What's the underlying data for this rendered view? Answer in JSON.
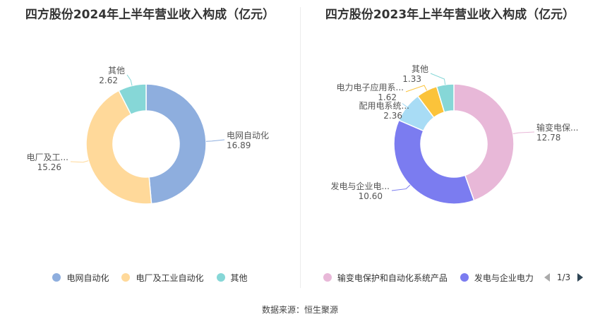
{
  "chart_data": [
    {
      "type": "pie",
      "title": "四方股份2024年上半年营业收入构成（亿元）",
      "categories": [
        "电网自动化",
        "电厂及工业自动化",
        "其他"
      ],
      "values": [
        16.89,
        15.26,
        2.62
      ],
      "label_names": [
        "电网自动化",
        "电厂及工...",
        "其他"
      ],
      "value_labels": [
        "16.89",
        "15.26",
        "2.62"
      ],
      "colors": [
        "#8eaede",
        "#ffd99a",
        "#86d7d7"
      ],
      "legend": [
        "电网自动化",
        "电厂及工业自动化",
        "其他"
      ]
    },
    {
      "type": "pie",
      "title": "四方股份2023年上半年营业收入构成（亿元）",
      "categories": [
        "输变电保护和自动化系统产品",
        "发电与企业电力",
        "配用电系统",
        "电力电子应用系统",
        "其他"
      ],
      "values": [
        12.78,
        10.6,
        2.36,
        1.62,
        1.33
      ],
      "label_names": [
        "输变电保...",
        "发电与企业电...",
        "配用电系统...",
        "电力电子应用系...",
        "其他"
      ],
      "value_labels": [
        "12.78",
        "10.60",
        "2.36",
        "1.62",
        "1.33"
      ],
      "colors": [
        "#e8b8d8",
        "#7b7cf0",
        "#a8dcf5",
        "#fbc33a",
        "#86d7d7"
      ],
      "legend": [
        "输变电保护和自动化系统产品",
        "发电与企业电力"
      ],
      "pager": "1/3"
    }
  ],
  "source": "数据来源：恒生聚源"
}
